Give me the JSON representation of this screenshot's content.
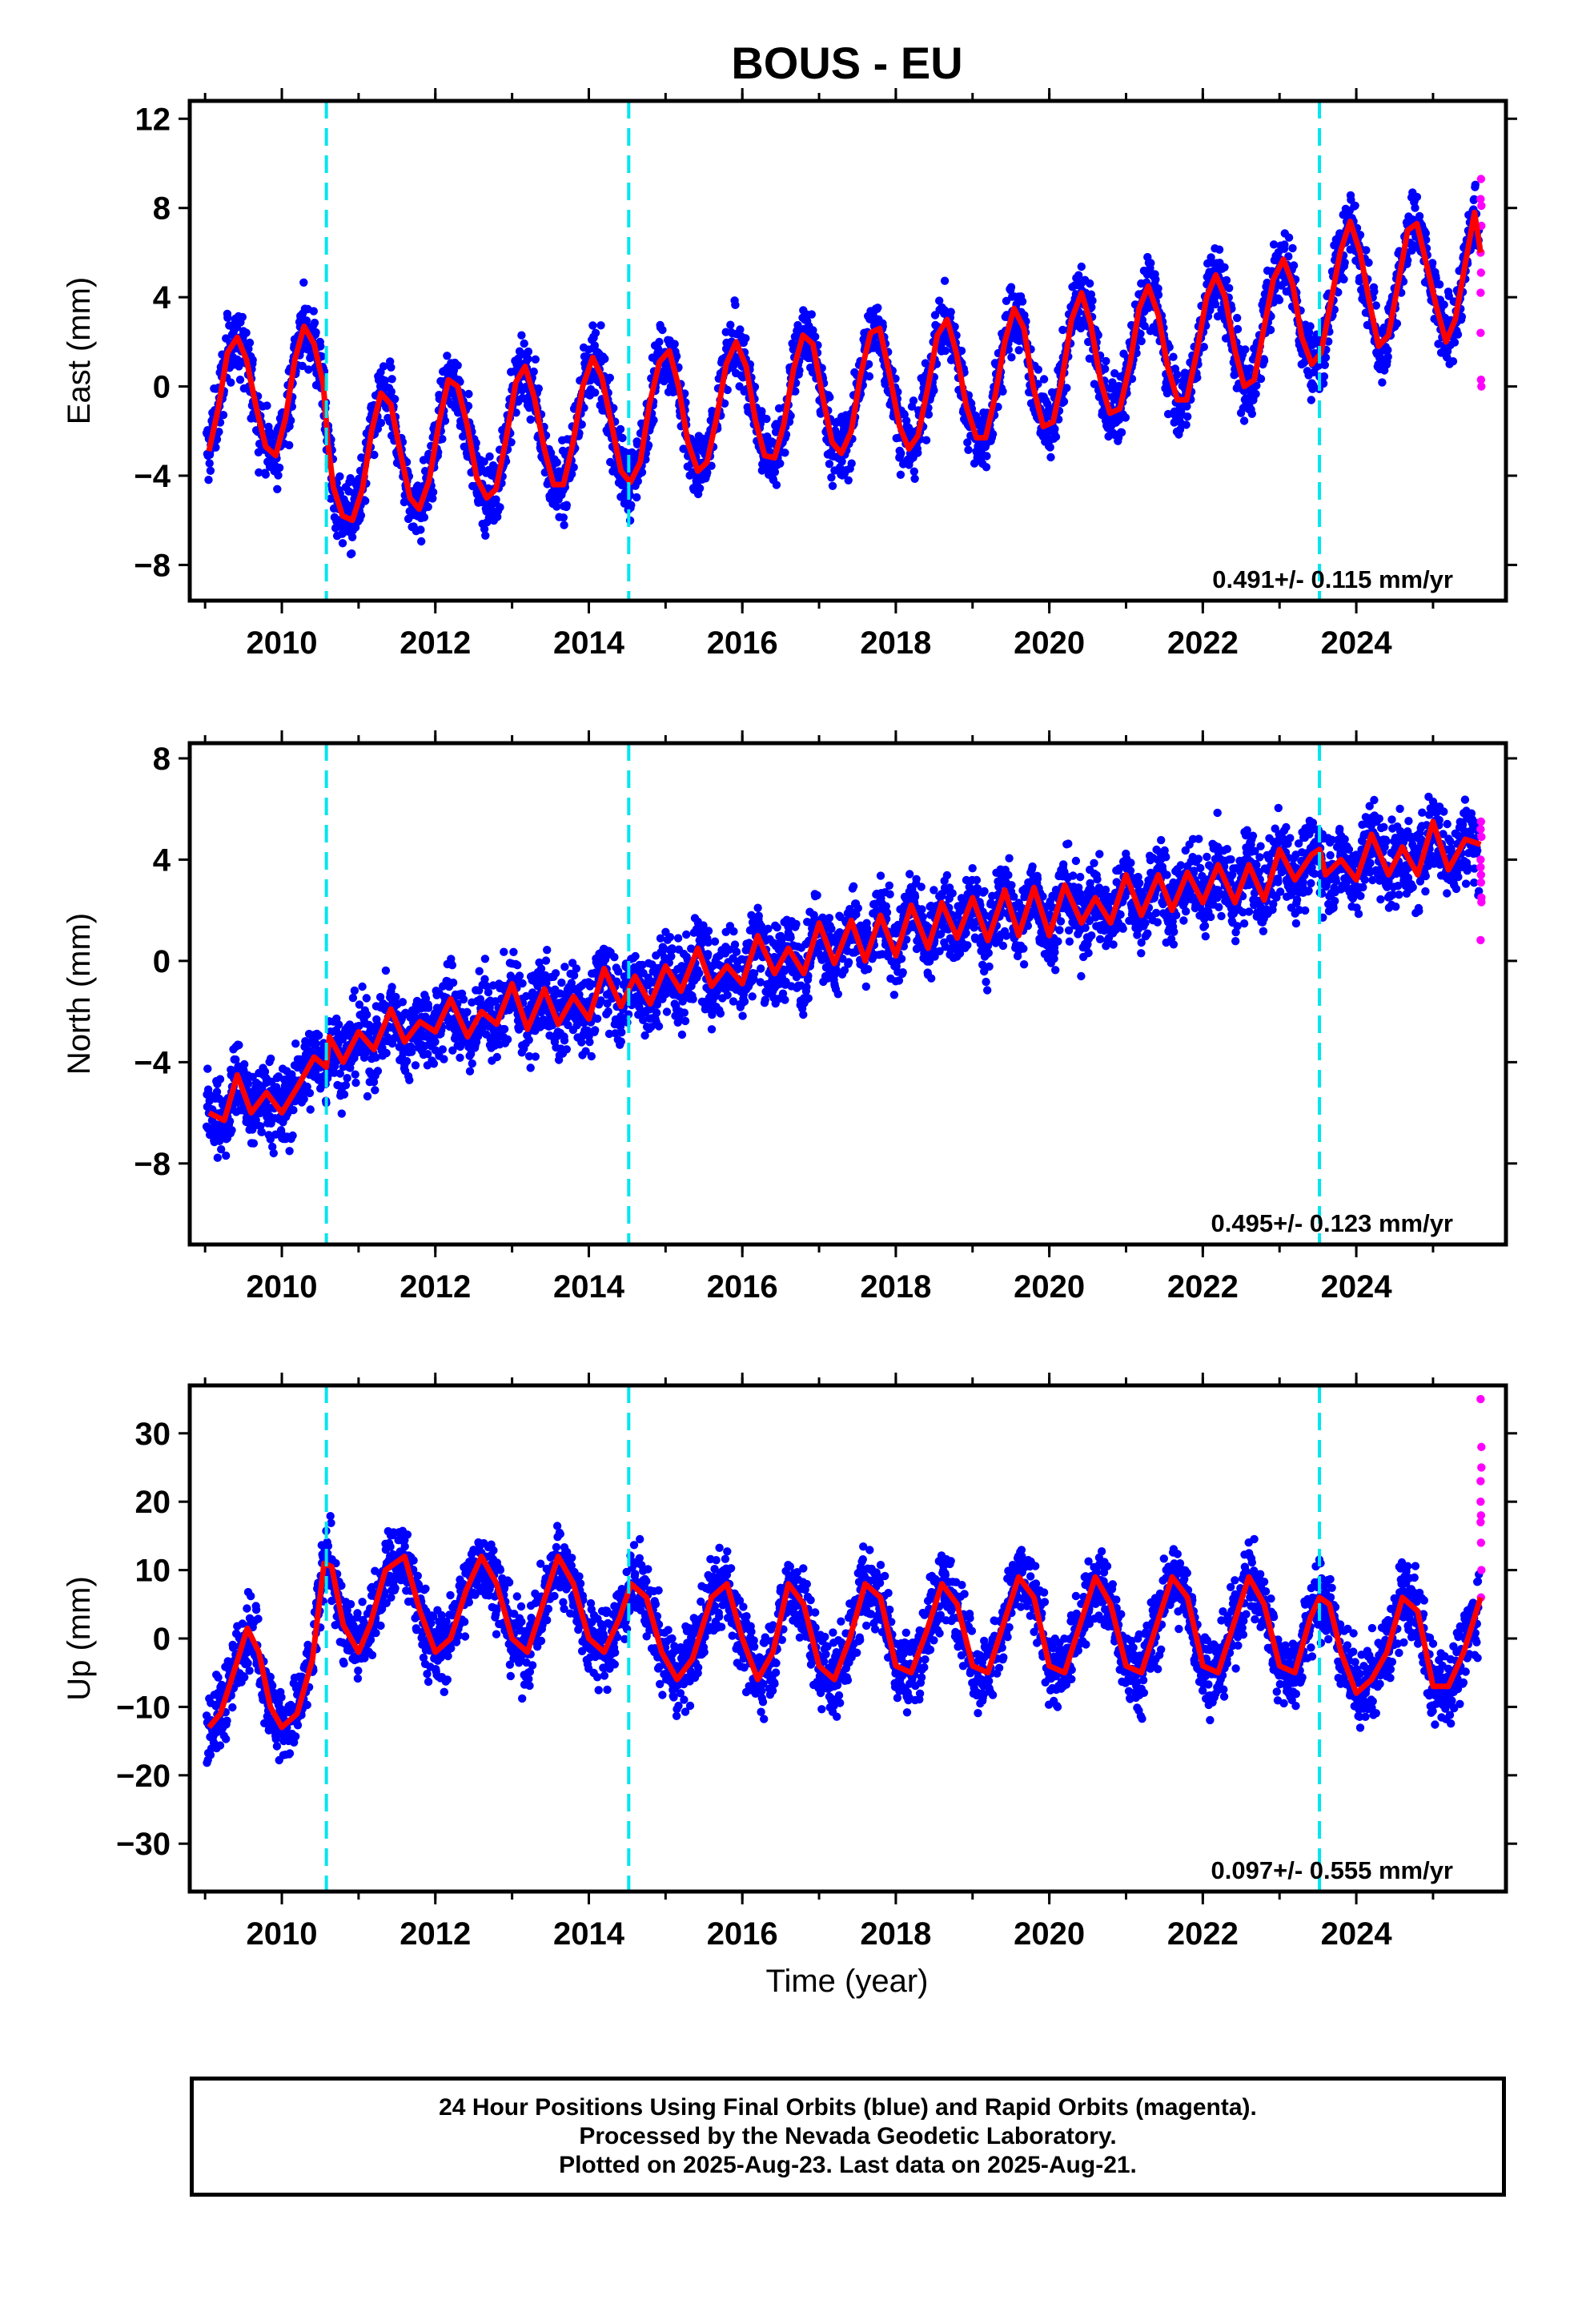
{
  "figure": {
    "title": "BOUS - EU",
    "xlabel": "Time (year)",
    "footer": [
      "24 Hour Positions Using Final Orbits (blue) and Rapid Orbits (magenta).",
      "Processed by the Nevada Geodetic Laboratory.",
      "Plotted on 2025-Aug-23. Last data on 2025-Aug-21."
    ]
  },
  "colors": {
    "final_orbits": "#0000ff",
    "rapid_orbits": "#ff00ff",
    "model_fit": "#ff0000",
    "event_lines": "#00e5ee",
    "frame": "#000000"
  },
  "chart_data": [
    {
      "type": "scatter",
      "panel": "east",
      "ylabel": "East (mm)",
      "rate_label": "0.491+/- 0.115 mm/yr",
      "xlim": [
        2008.8,
        2025.95
      ],
      "ylim": [
        -9.6,
        12.8
      ],
      "yticks": [
        -8,
        -4,
        0,
        4,
        8,
        12
      ],
      "xticks": [
        2010,
        2012,
        2014,
        2016,
        2018,
        2020,
        2022,
        2024
      ],
      "event_lines": [
        2010.58,
        2014.52,
        2023.52
      ],
      "grid": false,
      "legend": "none",
      "series": [
        {
          "role": "model",
          "x": [
            2009.05,
            2009.17,
            2009.29,
            2009.42,
            2009.54,
            2009.67,
            2009.79,
            2009.92,
            2010.05,
            2010.17,
            2010.29,
            2010.42,
            2010.54,
            2010.6,
            2010.67,
            2010.79,
            2010.92,
            2011.05,
            2011.17,
            2011.29,
            2011.42,
            2011.54,
            2011.67,
            2011.79,
            2011.92,
            2012.05,
            2012.17,
            2012.29,
            2012.42,
            2012.54,
            2012.67,
            2012.79,
            2012.92,
            2013.05,
            2013.17,
            2013.29,
            2013.42,
            2013.54,
            2013.67,
            2013.79,
            2013.92,
            2014.05,
            2014.17,
            2014.29,
            2014.42,
            2014.54,
            2014.67,
            2014.79,
            2014.92,
            2015.05,
            2015.17,
            2015.29,
            2015.42,
            2015.54,
            2015.67,
            2015.79,
            2015.92,
            2016.05,
            2016.17,
            2016.29,
            2016.42,
            2016.54,
            2016.67,
            2016.79,
            2016.92,
            2017.05,
            2017.17,
            2017.29,
            2017.42,
            2017.54,
            2017.67,
            2017.79,
            2017.92,
            2018.05,
            2018.17,
            2018.29,
            2018.42,
            2018.54,
            2018.67,
            2018.79,
            2018.92,
            2019.05,
            2019.17,
            2019.29,
            2019.42,
            2019.54,
            2019.67,
            2019.79,
            2019.92,
            2020.05,
            2020.17,
            2020.29,
            2020.42,
            2020.54,
            2020.67,
            2020.79,
            2020.92,
            2021.05,
            2021.17,
            2021.29,
            2021.42,
            2021.54,
            2021.67,
            2021.79,
            2021.92,
            2022.05,
            2022.17,
            2022.29,
            2022.42,
            2022.54,
            2022.67,
            2022.79,
            2022.92,
            2023.05,
            2023.17,
            2023.29,
            2023.42,
            2023.54,
            2023.67,
            2023.79,
            2023.92,
            2024.05,
            2024.17,
            2024.29,
            2024.42,
            2024.54,
            2024.67,
            2024.79,
            2024.92,
            2025.05,
            2025.17,
            2025.29,
            2025.42,
            2025.54,
            2025.62
          ],
          "y": [
            -2.9,
            -1.0,
            1.5,
            2.2,
            1.2,
            -1.0,
            -2.7,
            -3.1,
            -1.4,
            1.2,
            2.7,
            1.9,
            0.1,
            -2.5,
            -4.5,
            -5.8,
            -6.0,
            -4.6,
            -2.0,
            -0.3,
            -0.8,
            -2.9,
            -5.0,
            -5.5,
            -4.2,
            -1.6,
            0.3,
            0.0,
            -1.8,
            -4.1,
            -5.0,
            -4.6,
            -2.4,
            0.2,
            0.9,
            -0.5,
            -2.8,
            -4.4,
            -4.4,
            -2.6,
            0.0,
            1.3,
            0.4,
            -1.6,
            -3.8,
            -4.3,
            -3.4,
            -0.8,
            1.1,
            1.6,
            0.0,
            -2.5,
            -3.8,
            -3.4,
            -1.3,
            1.0,
            2.0,
            0.9,
            -1.5,
            -3.1,
            -3.2,
            -1.7,
            0.8,
            2.3,
            1.9,
            -0.5,
            -2.5,
            -3.0,
            -2.0,
            0.5,
            2.4,
            2.6,
            0.5,
            -1.8,
            -2.8,
            -2.2,
            0.0,
            2.3,
            3.0,
            1.5,
            -0.9,
            -2.3,
            -2.3,
            -0.5,
            2.0,
            3.5,
            2.6,
            0.0,
            -1.8,
            -1.6,
            0.4,
            3.0,
            4.2,
            2.8,
            0.2,
            -1.2,
            -1.0,
            1.0,
            3.5,
            4.5,
            3.2,
            0.9,
            -0.6,
            -0.6,
            1.5,
            4.0,
            5.0,
            4.0,
            1.6,
            0.0,
            0.3,
            2.5,
            4.8,
            5.7,
            4.6,
            2.2,
            1.0,
            1.5,
            3.8,
            6.0,
            7.4,
            6.0,
            3.8,
            1.8,
            2.3,
            4.5,
            7.0,
            7.3,
            5.4,
            3.5,
            2.0,
            3.0,
            5.5,
            7.8,
            6.0
          ]
        }
      ]
    },
    {
      "type": "scatter",
      "panel": "north",
      "ylabel": "North (mm)",
      "rate_label": "0.495+/- 0.123 mm/yr",
      "xlim": [
        2008.8,
        2025.95
      ],
      "ylim": [
        -11.2,
        8.6
      ],
      "yticks": [
        -8,
        -4,
        0,
        4,
        8
      ],
      "xticks": [
        2010,
        2012,
        2014,
        2016,
        2018,
        2020,
        2022,
        2024
      ],
      "event_lines": [
        2010.58,
        2014.52,
        2023.52
      ],
      "grid": false,
      "legend": "none",
      "series": [
        {
          "role": "model",
          "x": [
            2009.05,
            2009.25,
            2009.42,
            2009.6,
            2009.8,
            2010.0,
            2010.2,
            2010.42,
            2010.58,
            2010.62,
            2010.8,
            2011.0,
            2011.2,
            2011.42,
            2011.6,
            2011.8,
            2012.0,
            2012.2,
            2012.42,
            2012.6,
            2012.8,
            2013.0,
            2013.2,
            2013.42,
            2013.6,
            2013.8,
            2014.0,
            2014.2,
            2014.42,
            2014.6,
            2014.8,
            2015.0,
            2015.2,
            2015.42,
            2015.6,
            2015.8,
            2016.0,
            2016.2,
            2016.42,
            2016.6,
            2016.8,
            2017.0,
            2017.2,
            2017.42,
            2017.6,
            2017.8,
            2018.0,
            2018.2,
            2018.42,
            2018.6,
            2018.8,
            2019.0,
            2019.2,
            2019.42,
            2019.6,
            2019.8,
            2020.0,
            2020.2,
            2020.42,
            2020.6,
            2020.8,
            2021.0,
            2021.2,
            2021.42,
            2021.6,
            2021.8,
            2022.0,
            2022.2,
            2022.42,
            2022.6,
            2022.8,
            2023.0,
            2023.2,
            2023.42,
            2023.52,
            2023.6,
            2023.8,
            2024.0,
            2024.2,
            2024.42,
            2024.6,
            2024.8,
            2025.0,
            2025.2,
            2025.42,
            2025.62
          ],
          "y": [
            -6.0,
            -6.3,
            -4.5,
            -6.0,
            -5.2,
            -6.0,
            -5.0,
            -3.8,
            -4.2,
            -3.0,
            -4.0,
            -2.8,
            -3.5,
            -1.9,
            -3.2,
            -2.4,
            -2.8,
            -1.5,
            -3.0,
            -2.0,
            -2.5,
            -0.9,
            -2.7,
            -1.1,
            -2.5,
            -1.4,
            -2.3,
            -0.3,
            -1.8,
            -0.6,
            -1.7,
            -0.2,
            -1.2,
            0.5,
            -1.0,
            -0.2,
            -0.9,
            1.0,
            -0.5,
            0.5,
            -0.5,
            1.5,
            -0.1,
            1.6,
            0.0,
            1.8,
            0.2,
            2.2,
            0.5,
            2.3,
            0.9,
            2.5,
            0.8,
            2.8,
            1.0,
            2.9,
            1.0,
            3.0,
            1.5,
            2.5,
            1.5,
            3.4,
            1.8,
            3.4,
            2.0,
            3.5,
            2.3,
            3.8,
            2.3,
            3.8,
            2.4,
            4.4,
            3.2,
            4.2,
            4.4,
            3.4,
            4.0,
            3.2,
            5.0,
            3.4,
            4.5,
            3.4,
            5.5,
            3.6,
            4.8,
            4.6
          ]
        }
      ]
    },
    {
      "type": "scatter",
      "panel": "up",
      "ylabel": "Up (mm)",
      "rate_label": "0.097+/- 0.555 mm/yr",
      "xlim": [
        2008.8,
        2025.95
      ],
      "ylim": [
        -37.0,
        37.0
      ],
      "yticks": [
        -30,
        -20,
        -10,
        0,
        10,
        20,
        30
      ],
      "xticks": [
        2010,
        2012,
        2014,
        2016,
        2018,
        2020,
        2022,
        2024
      ],
      "event_lines": [
        2010.58,
        2014.52,
        2023.52
      ],
      "grid": false,
      "legend": "none",
      "series": [
        {
          "role": "model",
          "x": [
            2009.05,
            2009.2,
            2009.4,
            2009.55,
            2009.7,
            2009.85,
            2010.0,
            2010.2,
            2010.4,
            2010.55,
            2010.65,
            2010.8,
            2011.0,
            2011.15,
            2011.35,
            2011.6,
            2011.8,
            2012.0,
            2012.2,
            2012.4,
            2012.6,
            2012.8,
            2013.0,
            2013.2,
            2013.4,
            2013.6,
            2013.8,
            2014.0,
            2014.2,
            2014.4,
            2014.55,
            2014.75,
            2014.95,
            2015.15,
            2015.35,
            2015.6,
            2015.8,
            2016.0,
            2016.2,
            2016.4,
            2016.6,
            2016.8,
            2017.0,
            2017.2,
            2017.4,
            2017.6,
            2017.8,
            2018.0,
            2018.2,
            2018.4,
            2018.6,
            2018.8,
            2019.0,
            2019.2,
            2019.4,
            2019.6,
            2019.8,
            2020.0,
            2020.2,
            2020.4,
            2020.6,
            2020.8,
            2021.0,
            2021.2,
            2021.4,
            2021.6,
            2021.8,
            2022.0,
            2022.2,
            2022.4,
            2022.6,
            2022.8,
            2023.0,
            2023.2,
            2023.4,
            2023.52,
            2023.65,
            2023.8,
            2024.0,
            2024.2,
            2024.4,
            2024.6,
            2024.8,
            2025.0,
            2025.2,
            2025.4,
            2025.62
          ],
          "y": [
            -13.0,
            -11.0,
            -4.0,
            1.5,
            -2.0,
            -10.0,
            -13.0,
            -11.0,
            -3.0,
            11.0,
            10.5,
            2.0,
            -2.0,
            2.0,
            10.0,
            12.0,
            4.0,
            -2.0,
            0.0,
            7.0,
            12.0,
            8.0,
            0.0,
            -2.0,
            5.0,
            12.0,
            8.0,
            0.0,
            -2.0,
            3.0,
            8.0,
            6.0,
            -2.0,
            -6.0,
            -3.0,
            6.0,
            8.0,
            0.0,
            -6.0,
            -2.0,
            8.0,
            5.0,
            -4.0,
            -6.0,
            0.0,
            8.0,
            6.0,
            -4.0,
            -5.0,
            1.0,
            8.0,
            5.0,
            -4.0,
            -5.0,
            2.0,
            9.0,
            6.0,
            -4.0,
            -5.0,
            2.0,
            9.0,
            5.0,
            -4.0,
            -5.0,
            2.0,
            9.0,
            6.0,
            -4.0,
            -5.0,
            2.0,
            9.0,
            5.0,
            -4.0,
            -5.0,
            3.0,
            6.0,
            5.0,
            -2.0,
            -8.0,
            -6.0,
            -2.0,
            6.0,
            4.0,
            -7.0,
            -7.0,
            -2.0,
            6.0
          ]
        }
      ]
    }
  ]
}
